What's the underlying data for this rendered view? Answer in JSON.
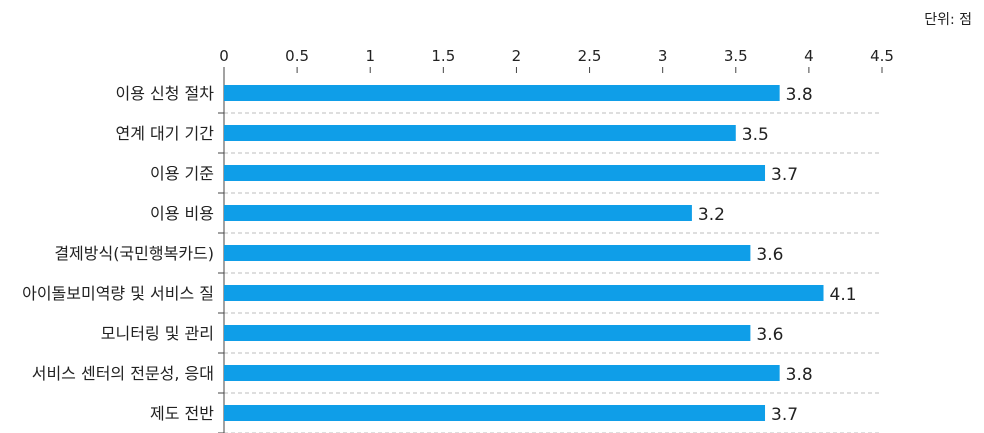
{
  "unit_label": "단위: 점",
  "chart_data": {
    "type": "bar",
    "orientation": "horizontal",
    "categories": [
      "이용 신청 절차",
      "연계 대기 기간",
      "이용 기준",
      "이용 비용",
      "결제방식(국민행복카드)",
      "아이돌보미역량 및 서비스 질",
      "모니터링 및 관리",
      "서비스 센터의 전문성, 응대",
      "제도 전반"
    ],
    "values": [
      3.8,
      3.5,
      3.7,
      3.2,
      3.6,
      4.1,
      3.6,
      3.8,
      3.7
    ],
    "value_labels": [
      "3.8",
      "3.5",
      "3.7",
      "3.2",
      "3.6",
      "4.1",
      "3.6",
      "3.8",
      "3.7"
    ],
    "ticks": [
      "0",
      "0.5",
      "1",
      "1.5",
      "2",
      "2.5",
      "3",
      "3.5",
      "4",
      "4.5"
    ],
    "xlim": [
      0,
      4.5
    ],
    "x_axis_position": "top",
    "bar_color": "#0f9ee8",
    "grid_color": "#bdbdbd",
    "grid": "dashed horizontal separators"
  }
}
